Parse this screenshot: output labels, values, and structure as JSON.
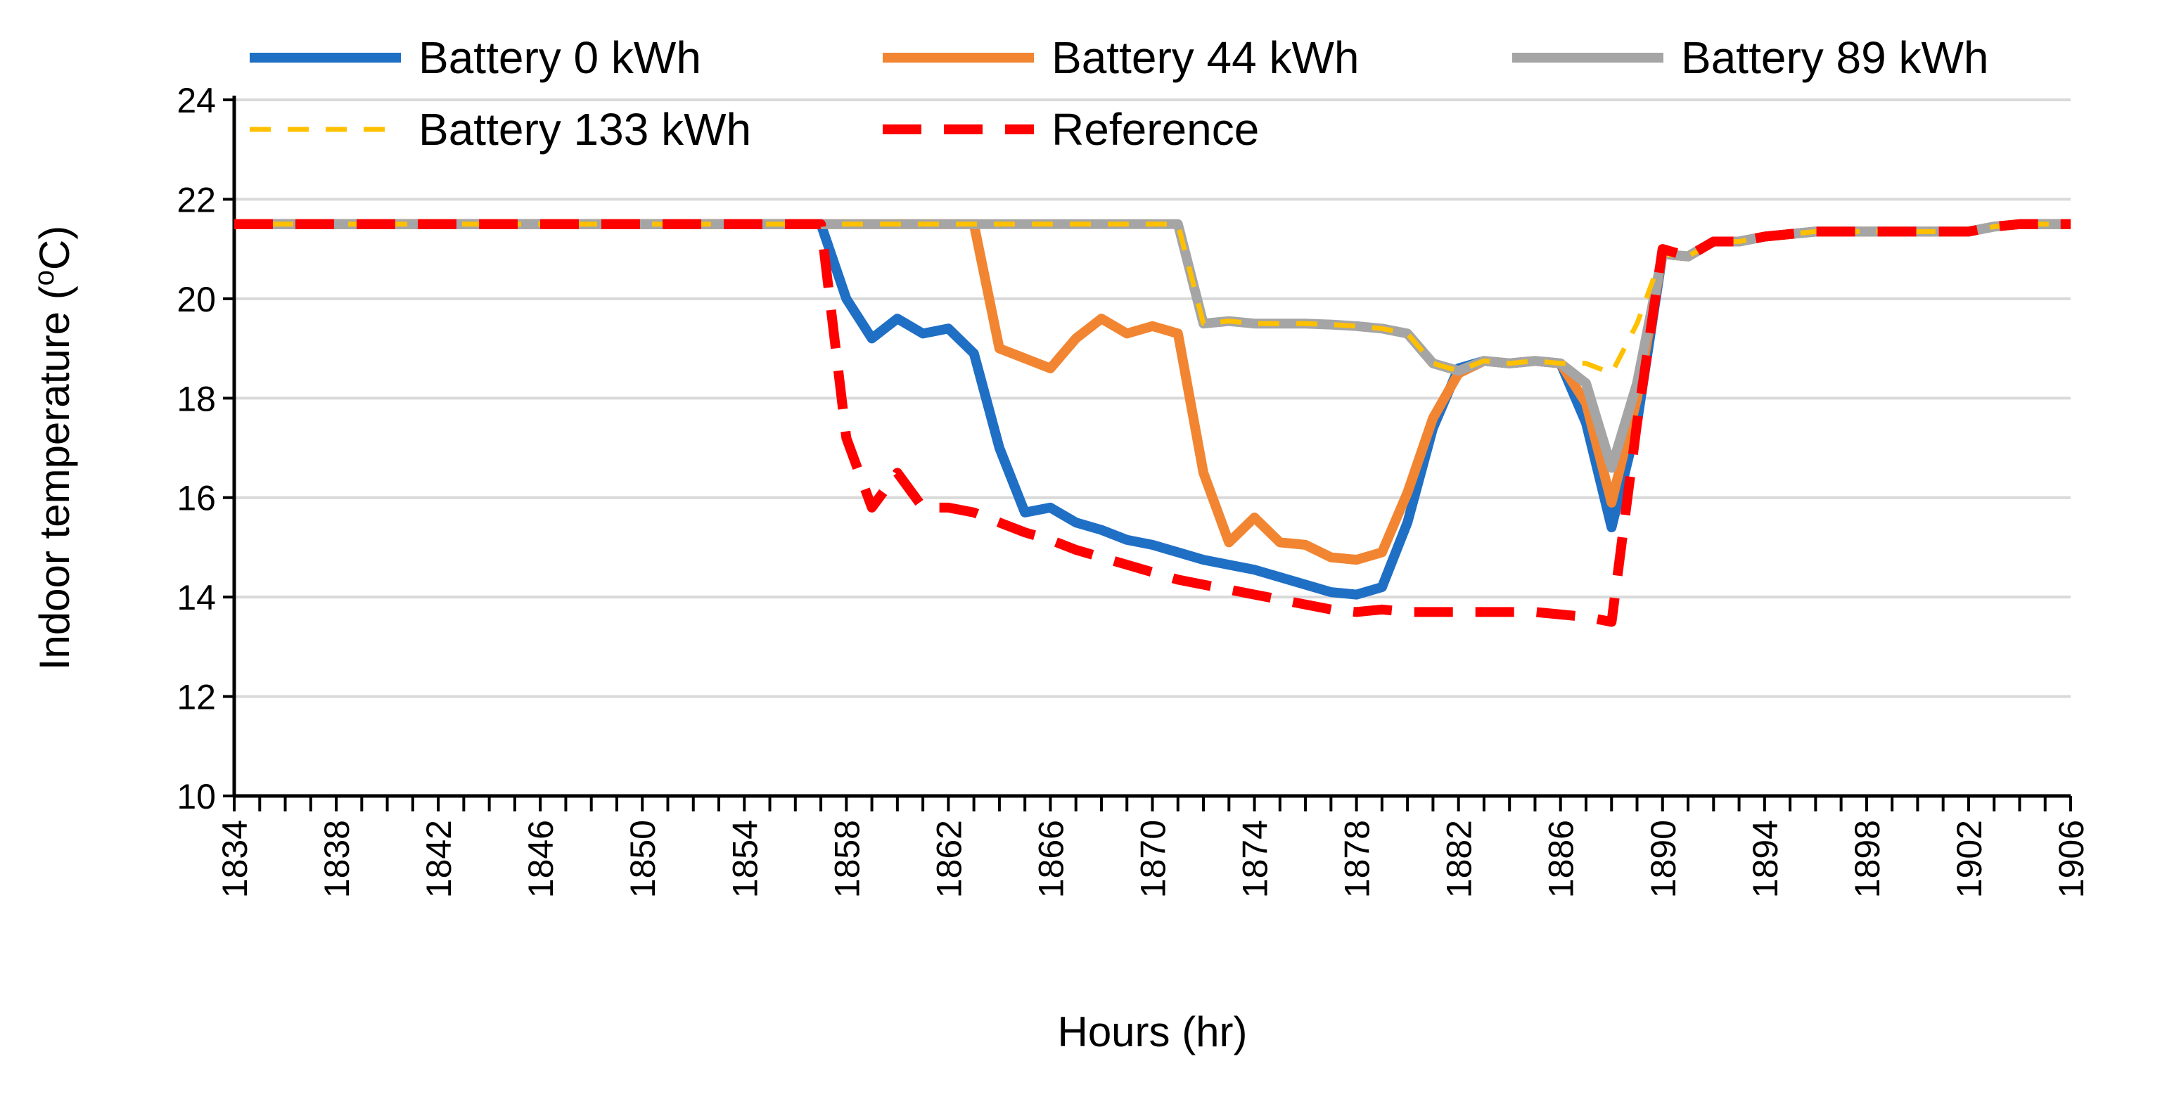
{
  "chart_data": {
    "type": "line",
    "title": "",
    "xlabel": "Hours (hr)",
    "ylabel": "Indoor temperature (",
    "ylabel_sup": "o",
    "ylabel_suffix": "C)",
    "xlim": [
      1834,
      1906
    ],
    "ylim": [
      10,
      24
    ],
    "y_ticks": [
      10,
      12,
      14,
      16,
      18,
      20,
      22,
      24
    ],
    "x_ticks": [
      1834,
      1838,
      1842,
      1846,
      1850,
      1854,
      1858,
      1862,
      1866,
      1870,
      1874,
      1878,
      1882,
      1886,
      1890,
      1894,
      1898,
      1902,
      1906
    ],
    "grid": true,
    "legend_position": "top",
    "series": [
      {
        "name": "Battery 0 kWh",
        "color": "#1f6fc5",
        "style": "solid",
        "x": [
          1834,
          1857,
          1858,
          1859,
          1860,
          1861,
          1862,
          1863,
          1864,
          1865,
          1866,
          1867,
          1868,
          1869,
          1870,
          1871,
          1872,
          1873,
          1874,
          1875,
          1876,
          1877,
          1878,
          1879,
          1880,
          1881,
          1882,
          1883,
          1884,
          1885,
          1886,
          1887,
          1888,
          1889,
          1890,
          1891,
          1892,
          1893,
          1894,
          1895,
          1896,
          1897,
          1898,
          1899,
          1900,
          1901,
          1902,
          1903,
          1904,
          1905,
          1906
        ],
        "values": [
          21.5,
          21.5,
          20.0,
          19.2,
          19.6,
          19.3,
          19.4,
          18.9,
          17.0,
          15.7,
          15.8,
          15.5,
          15.35,
          15.15,
          15.05,
          14.9,
          14.75,
          14.65,
          14.55,
          14.4,
          14.25,
          14.1,
          14.05,
          14.2,
          15.5,
          17.4,
          18.6,
          18.75,
          18.7,
          18.75,
          18.7,
          17.5,
          15.4,
          17.5,
          20.9,
          20.85,
          21.15,
          21.15,
          21.25,
          21.3,
          21.35,
          21.35,
          21.35,
          21.35,
          21.35,
          21.35,
          21.35,
          21.45,
          21.5,
          21.5,
          21.5
        ]
      },
      {
        "name": "Battery 44 kWh",
        "color": "#f28532",
        "style": "solid",
        "x": [
          1834,
          1863,
          1864,
          1865,
          1866,
          1867,
          1868,
          1869,
          1870,
          1871,
          1872,
          1873,
          1874,
          1875,
          1876,
          1877,
          1878,
          1879,
          1880,
          1881,
          1882,
          1883,
          1884,
          1885,
          1886,
          1887,
          1888,
          1889,
          1890,
          1891,
          1892,
          1893,
          1894,
          1895,
          1896,
          1897,
          1898,
          1899,
          1900,
          1901,
          1902,
          1903,
          1904,
          1905,
          1906
        ],
        "values": [
          21.5,
          21.5,
          19.0,
          18.8,
          18.6,
          19.2,
          19.6,
          19.3,
          19.45,
          19.3,
          16.5,
          15.1,
          15.6,
          15.1,
          15.05,
          14.8,
          14.75,
          14.9,
          16.1,
          17.6,
          18.5,
          18.75,
          18.7,
          18.75,
          18.7,
          17.9,
          15.9,
          18.0,
          20.9,
          20.85,
          21.15,
          21.15,
          21.25,
          21.3,
          21.35,
          21.35,
          21.35,
          21.35,
          21.35,
          21.35,
          21.35,
          21.45,
          21.5,
          21.5,
          21.5
        ]
      },
      {
        "name": "Battery 89 kWh",
        "color": "#a5a5a5",
        "style": "solid",
        "x": [
          1834,
          1871,
          1872,
          1873,
          1874,
          1875,
          1876,
          1877,
          1878,
          1879,
          1880,
          1881,
          1882,
          1883,
          1884,
          1885,
          1886,
          1887,
          1888,
          1889,
          1890,
          1891,
          1892,
          1893,
          1894,
          1895,
          1896,
          1897,
          1898,
          1899,
          1900,
          1901,
          1902,
          1903,
          1904,
          1905,
          1906
        ],
        "values": [
          21.5,
          21.5,
          19.5,
          19.55,
          19.5,
          19.5,
          19.5,
          19.48,
          19.45,
          19.4,
          19.3,
          18.7,
          18.55,
          18.75,
          18.7,
          18.75,
          18.7,
          18.3,
          16.6,
          18.3,
          20.9,
          20.85,
          21.15,
          21.15,
          21.25,
          21.3,
          21.35,
          21.35,
          21.35,
          21.35,
          21.35,
          21.35,
          21.35,
          21.45,
          21.5,
          21.5,
          21.5
        ]
      },
      {
        "name": "Battery 133 kWh",
        "color": "#ffc000",
        "style": "dashed",
        "x": [
          1834,
          1871,
          1872,
          1873,
          1874,
          1875,
          1876,
          1877,
          1878,
          1879,
          1880,
          1881,
          1882,
          1883,
          1884,
          1885,
          1886,
          1887,
          1888,
          1889,
          1890,
          1891,
          1892,
          1893,
          1894,
          1895,
          1896,
          1897,
          1898,
          1899,
          1900,
          1901,
          1902,
          1903,
          1904,
          1905,
          1906
        ],
        "values": [
          21.5,
          21.5,
          19.5,
          19.55,
          19.5,
          19.5,
          19.5,
          19.48,
          19.45,
          19.4,
          19.3,
          18.7,
          18.55,
          18.75,
          18.7,
          18.75,
          18.7,
          18.7,
          18.5,
          19.5,
          20.9,
          20.85,
          21.15,
          21.15,
          21.25,
          21.3,
          21.35,
          21.35,
          21.35,
          21.35,
          21.35,
          21.35,
          21.35,
          21.45,
          21.5,
          21.5,
          21.5
        ]
      },
      {
        "name": "Reference",
        "color": "#ff0000",
        "style": "dashed",
        "x": [
          1834,
          1857,
          1858,
          1859,
          1860,
          1861,
          1862,
          1863,
          1864,
          1865,
          1866,
          1867,
          1868,
          1869,
          1870,
          1871,
          1872,
          1873,
          1874,
          1875,
          1876,
          1877,
          1878,
          1879,
          1880,
          1881,
          1882,
          1883,
          1884,
          1885,
          1886,
          1887,
          1888,
          1889,
          1890,
          1891,
          1892,
          1893,
          1894,
          1895,
          1896,
          1897,
          1898,
          1899,
          1900,
          1901,
          1902,
          1903,
          1904,
          1905,
          1906
        ],
        "values": [
          21.5,
          21.5,
          17.2,
          15.8,
          16.5,
          15.8,
          15.8,
          15.7,
          15.5,
          15.3,
          15.15,
          14.95,
          14.8,
          14.65,
          14.5,
          14.35,
          14.25,
          14.15,
          14.05,
          13.95,
          13.85,
          13.75,
          13.7,
          13.75,
          13.7,
          13.7,
          13.7,
          13.7,
          13.7,
          13.7,
          13.65,
          13.6,
          13.5,
          17.5,
          21.0,
          20.85,
          21.15,
          21.15,
          21.25,
          21.3,
          21.35,
          21.35,
          21.35,
          21.35,
          21.35,
          21.35,
          21.35,
          21.45,
          21.5,
          21.5,
          21.5
        ]
      }
    ]
  }
}
